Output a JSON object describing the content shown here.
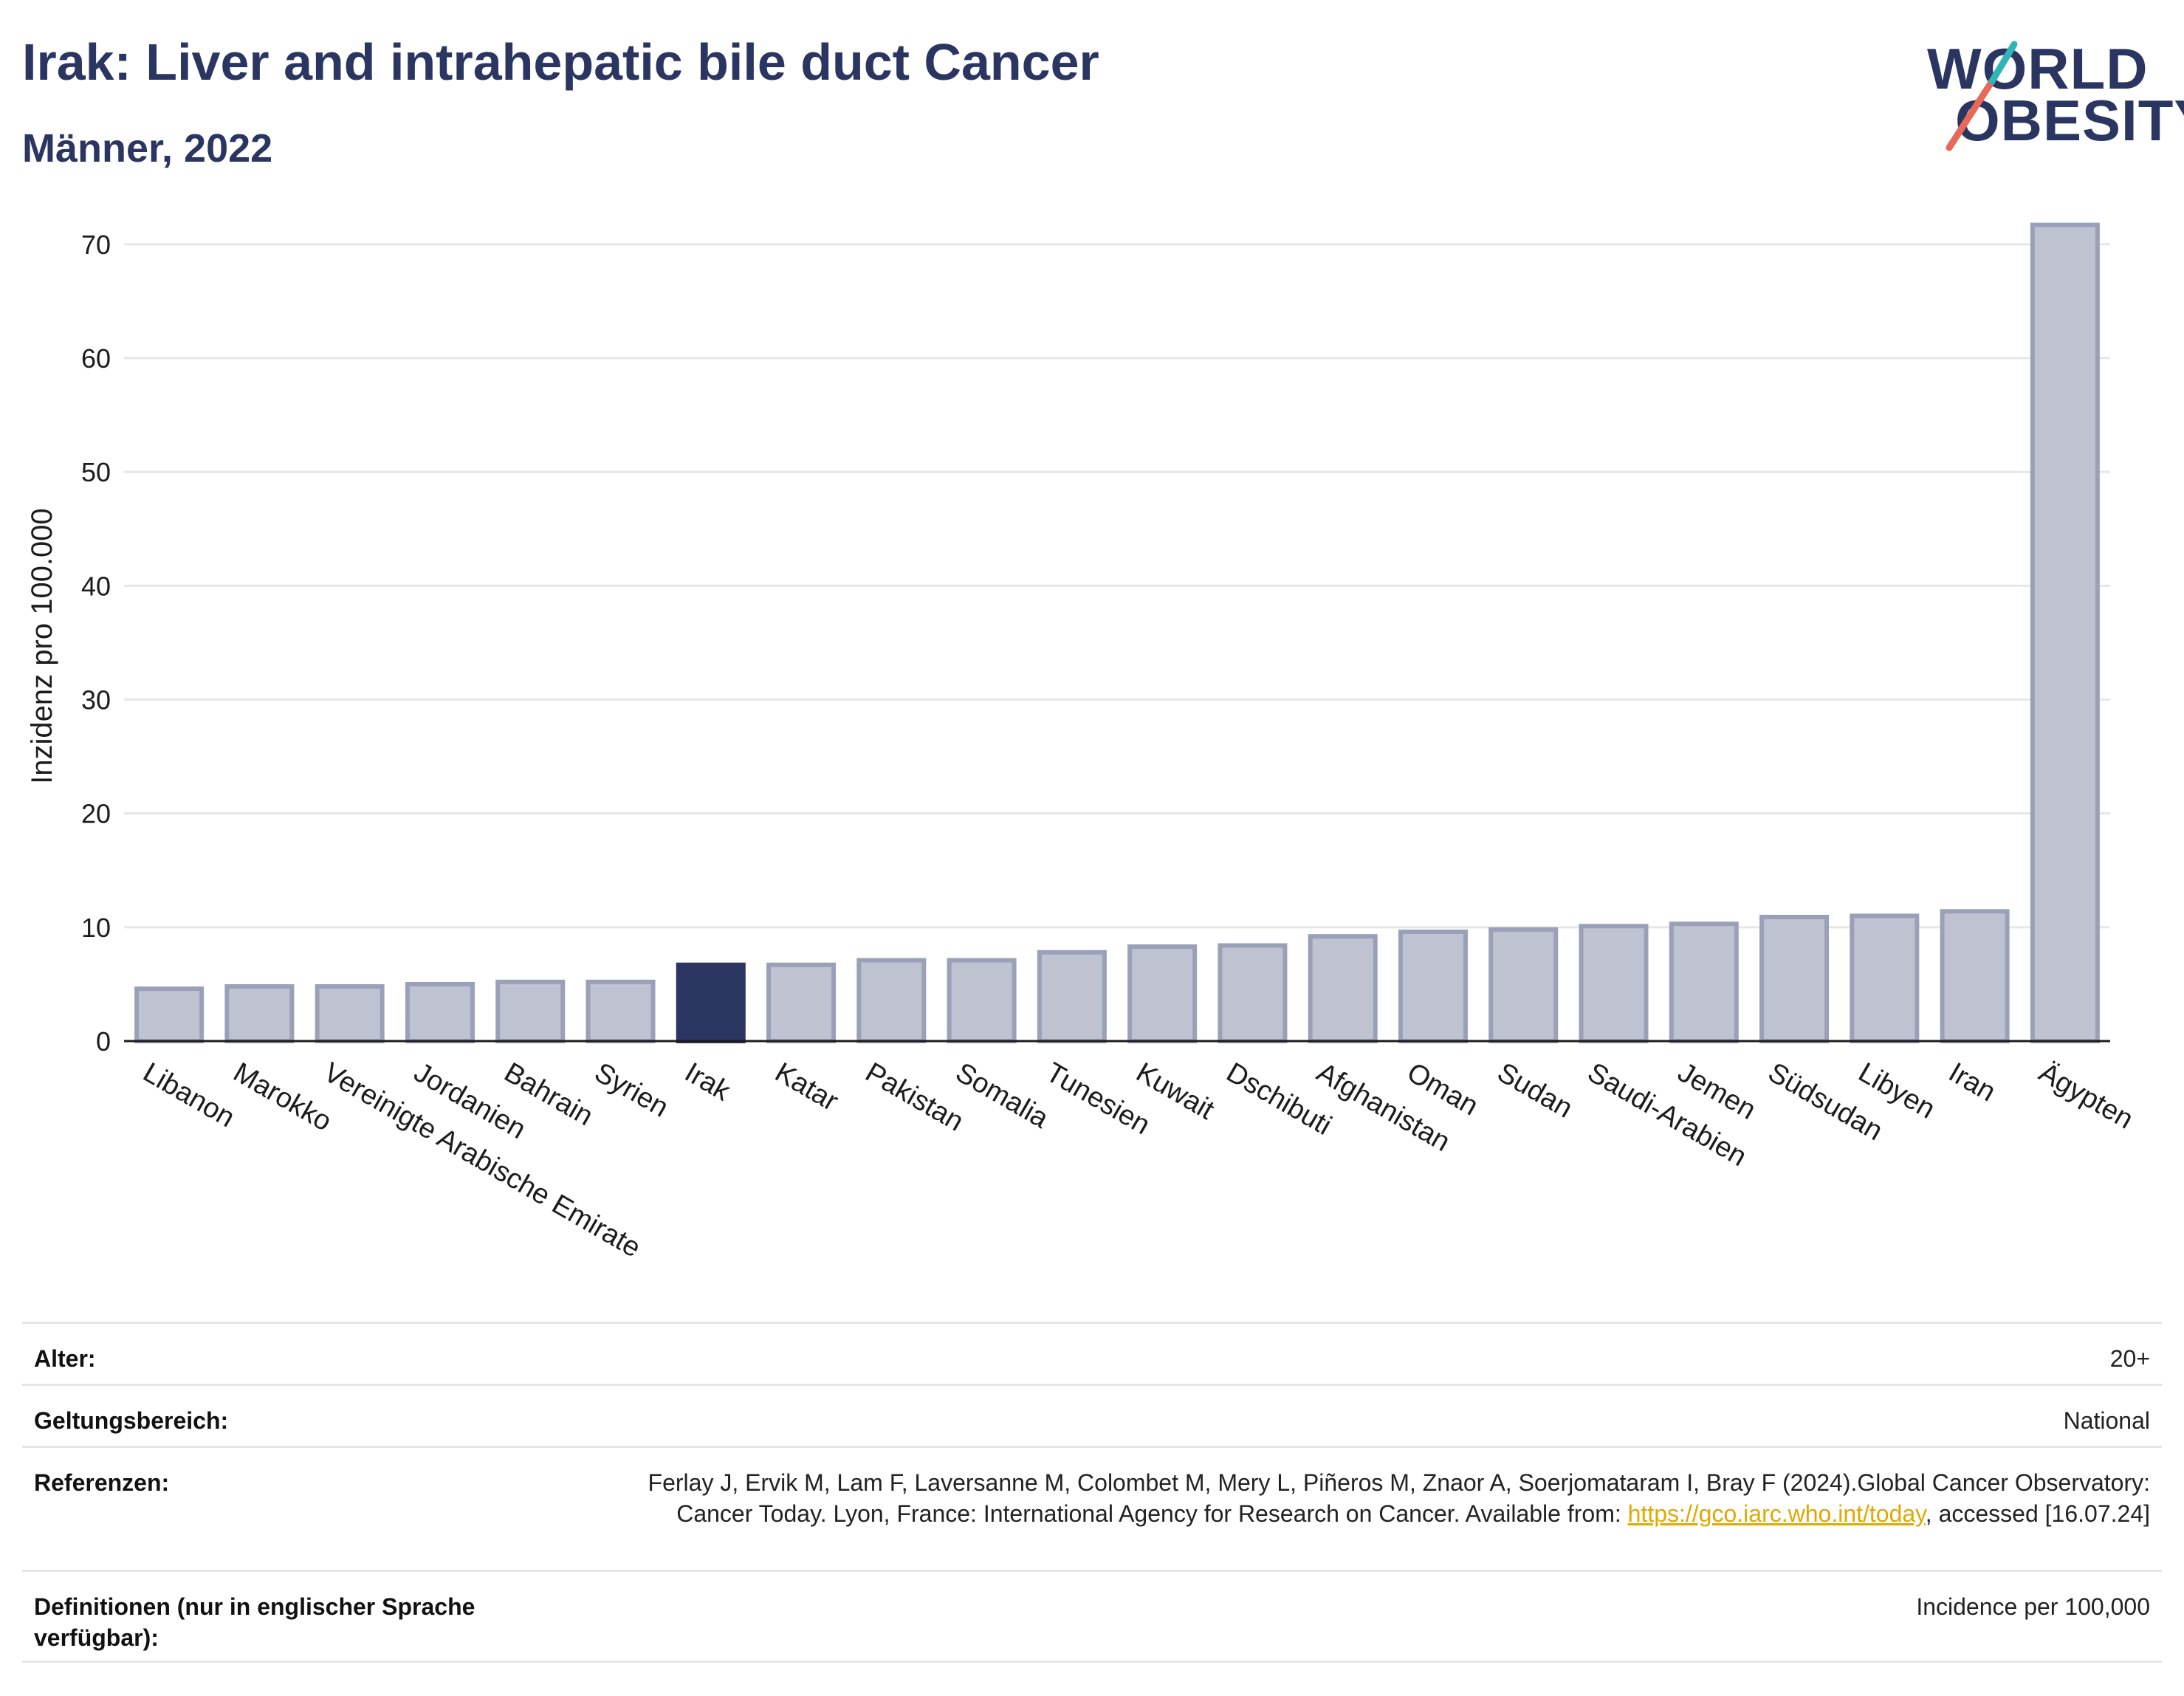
{
  "header": {
    "title": "Irak: Liver and intrahepatic bile duct Cancer",
    "subtitle": "Männer, 2022"
  },
  "logo": {
    "line1": "WORLD",
    "line2": "OBESITY",
    "slash_colors": [
      "#e8685a",
      "#2fb5b5"
    ]
  },
  "colors": {
    "highlight_bar": "#2a3561",
    "other_bar": "#bfc3d1",
    "other_bar_border": "#9aa0b8",
    "title": "#2a3561",
    "link": "#e0a800"
  },
  "chart_data": {
    "type": "bar",
    "title": "Irak: Liver and intrahepatic bile duct Cancer",
    "subtitle": "Männer, 2022",
    "xlabel": "",
    "ylabel": "Inzidenz pro 100.000",
    "ylim": [
      0,
      72
    ],
    "yticks": [
      0,
      10,
      20,
      30,
      40,
      50,
      60,
      70
    ],
    "grid": true,
    "highlight": "Irak",
    "categories": [
      "Libanon",
      "Marokko",
      "Vereinigte Arabische Emirate",
      "Jordanien",
      "Bahrain",
      "Syrien",
      "Irak",
      "Katar",
      "Pakistan",
      "Somalia",
      "Tunesien",
      "Kuwait",
      "Dschibuti",
      "Afghanistan",
      "Oman",
      "Sudan",
      "Saudi-Arabien",
      "Jemen",
      "Südsudan",
      "Libyen",
      "Iran",
      "Ägypten"
    ],
    "values": [
      4.6,
      4.8,
      4.8,
      5.0,
      5.2,
      5.2,
      6.7,
      6.7,
      7.1,
      7.1,
      7.8,
      8.3,
      8.4,
      9.2,
      9.6,
      9.8,
      10.1,
      10.3,
      10.9,
      11.0,
      11.4,
      71.7
    ]
  },
  "meta": [
    {
      "label": "Alter:",
      "value": "20+"
    },
    {
      "label": "Geltungsbereich:",
      "value": "National"
    },
    {
      "label": "Referenzen:",
      "value_pre": "Ferlay J, Ervik M, Lam F, Laversanne M, Colombet M, Mery L, Piñeros M, Znaor A, Soerjomataram I, Bray F (2024).Global Cancer Observatory: Cancer Today. Lyon, France: International Agency for Research on Cancer. Available from: ",
      "link": "https://gco.iarc.who.int/today",
      "value_post": ", accessed [16.07.24]"
    },
    {
      "label": "Definitionen (nur in englischer Sprache verfügbar):",
      "value": "Incidence per 100,000"
    }
  ]
}
